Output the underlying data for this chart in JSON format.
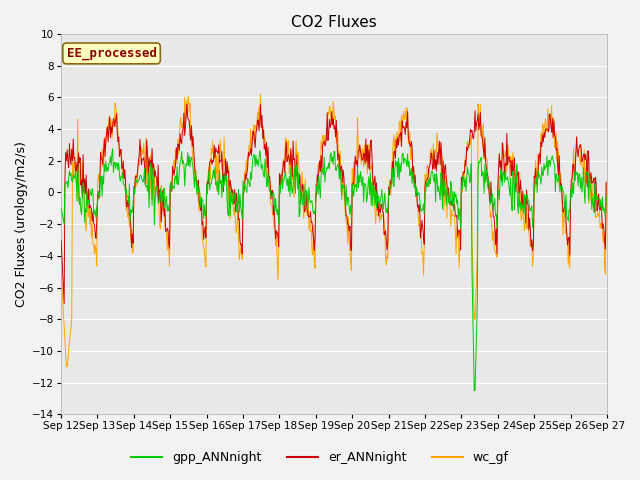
{
  "title": "CO2 Fluxes",
  "ylabel": "CO2 Fluxes (urology/m2/s)",
  "xlabel": "",
  "ylim": [
    -14,
    10
  ],
  "yticks": [
    -14,
    -12,
    -10,
    -8,
    -6,
    -4,
    -2,
    0,
    2,
    4,
    6,
    8,
    10
  ],
  "annotation_text": "EE_processed",
  "annotation_bg": "#FFFFC0",
  "annotation_border": "#8B0000",
  "line_colors": {
    "gpp": "#00CC00",
    "er": "#CC0000",
    "wc": "#FFA500"
  },
  "legend_labels": [
    "gpp_ANNnight",
    "er_ANNnight",
    "wc_gf"
  ],
  "legend_colors": [
    "#00CC00",
    "#CC0000",
    "#FFA500"
  ],
  "plot_bg": "#E8E8E8",
  "title_fontsize": 11,
  "axis_fontsize": 9,
  "tick_fontsize": 7.5,
  "linewidth": 0.7
}
